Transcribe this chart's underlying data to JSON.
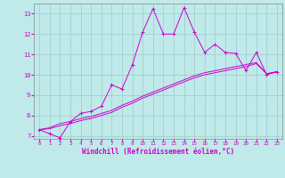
{
  "xlabel": "Windchill (Refroidissement éolien,°C)",
  "background_color": "#c0eaea",
  "grid_color": "#a0c8c8",
  "line_color": "#cc00cc",
  "xlim": [
    -0.5,
    23.5
  ],
  "ylim": [
    6.85,
    13.5
  ],
  "xticks": [
    0,
    1,
    2,
    3,
    4,
    5,
    6,
    7,
    8,
    9,
    10,
    11,
    12,
    13,
    14,
    15,
    16,
    17,
    18,
    19,
    20,
    21,
    22,
    23
  ],
  "yticks": [
    7,
    8,
    9,
    10,
    11,
    12,
    13
  ],
  "series1_x": [
    0,
    1,
    2,
    3,
    4,
    5,
    6,
    7,
    8,
    9,
    10,
    11,
    12,
    13,
    14,
    15,
    16,
    17,
    18,
    19,
    20,
    21,
    22,
    23
  ],
  "series1_y": [
    7.3,
    7.1,
    6.9,
    7.7,
    8.1,
    8.2,
    8.45,
    9.5,
    9.3,
    10.5,
    12.1,
    13.25,
    12.0,
    12.0,
    13.3,
    12.1,
    11.1,
    11.5,
    11.1,
    11.05,
    10.2,
    11.1,
    10.0,
    10.15
  ],
  "series2_x": [
    0,
    1,
    2,
    3,
    4,
    5,
    6,
    7,
    8,
    9,
    10,
    11,
    12,
    13,
    14,
    15,
    16,
    17,
    18,
    19,
    20,
    21,
    22,
    23
  ],
  "series2_y": [
    7.3,
    7.4,
    7.6,
    7.7,
    7.85,
    7.95,
    8.1,
    8.25,
    8.5,
    8.7,
    8.95,
    9.15,
    9.35,
    9.55,
    9.75,
    9.95,
    10.1,
    10.2,
    10.3,
    10.4,
    10.5,
    10.6,
    10.05,
    10.15
  ],
  "series3_x": [
    0,
    1,
    2,
    3,
    4,
    5,
    6,
    7,
    8,
    9,
    10,
    11,
    12,
    13,
    14,
    15,
    16,
    17,
    18,
    19,
    20,
    21,
    22,
    23
  ],
  "series3_y": [
    7.3,
    7.35,
    7.5,
    7.6,
    7.75,
    7.85,
    8.0,
    8.15,
    8.4,
    8.6,
    8.85,
    9.05,
    9.25,
    9.45,
    9.65,
    9.85,
    10.0,
    10.1,
    10.2,
    10.3,
    10.4,
    10.55,
    10.05,
    10.15
  ]
}
